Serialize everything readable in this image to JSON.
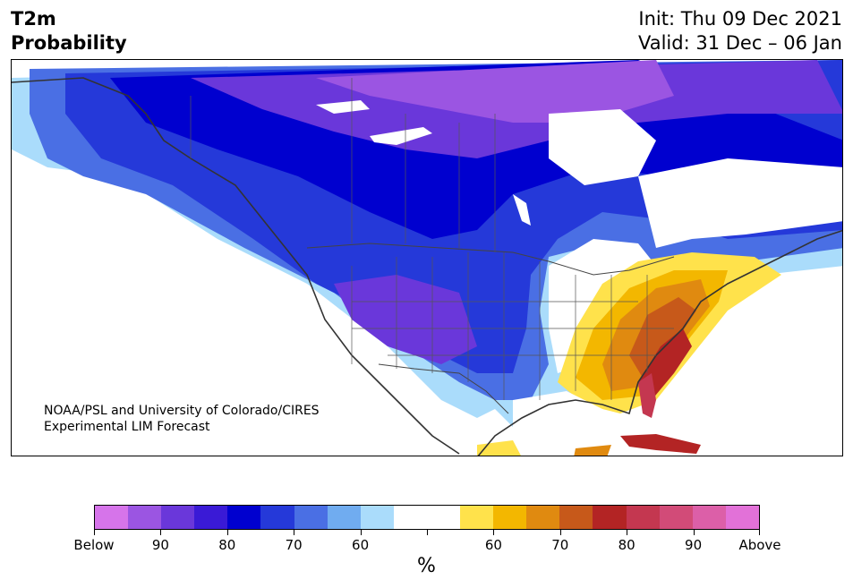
{
  "header": {
    "title_line1": "T2m",
    "title_line2": "Probability",
    "init": "Init: Thu 09 Dec 2021",
    "valid": "Valid: 31 Dec – 06 Jan"
  },
  "credit": {
    "line1": "NOAA/PSL and University of Colorado/CIRES",
    "line2": "Experimental LIM Forecast"
  },
  "colorbar": {
    "colors": [
      "#d674ea",
      "#9b55e2",
      "#6a37da",
      "#3a1ad6",
      "#0000cf",
      "#2539d9",
      "#4a6fe4",
      "#70acf0",
      "#aadcfb",
      "#ffffff",
      "#ffffff",
      "#ffe24b",
      "#f3b700",
      "#e08a10",
      "#c7591a",
      "#b32424",
      "#c43750",
      "#d24b78",
      "#dc5fa8",
      "#e271d8"
    ],
    "labels": [
      "Below",
      "90",
      "80",
      "70",
      "60",
      "",
      "60",
      "70",
      "80",
      "90",
      "Above"
    ],
    "unit": "%"
  },
  "legend_colors": {
    "cold_max": "#6a37da",
    "cold_mid": "#0000cf",
    "cold_low": "#aadcfb",
    "warm_low": "#ffe24b",
    "warm_mid": "#e08a10",
    "warm_max": "#b32424"
  }
}
